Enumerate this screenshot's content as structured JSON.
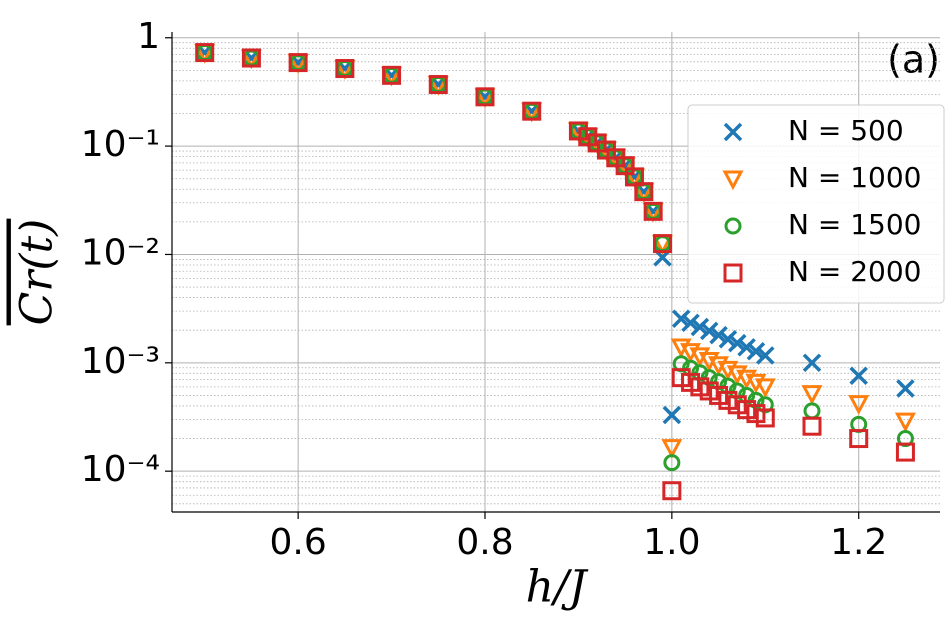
{
  "chart_data": {
    "type": "scatter",
    "xlabel": "h/J",
    "ylabel": "Cr(t)",
    "annotation": "(a)",
    "log_y": true,
    "grid": true,
    "legend": "upper right",
    "xlim": [
      0.465,
      1.287
    ],
    "ylim": [
      4.2e-05,
      1.13
    ],
    "xticks": [
      0.6,
      0.8,
      {
        "value": 1.0,
        "label": "1.0"
      },
      1.2
    ],
    "yticks": [
      {
        "value": 0.0001,
        "label": "10⁻⁴"
      },
      {
        "value": 0.001,
        "label": "10⁻³"
      },
      {
        "value": 0.01,
        "label": "10⁻²"
      },
      {
        "value": 0.1,
        "label": "10⁻¹"
      },
      1
    ],
    "x": [
      0.5,
      0.55,
      0.6,
      0.65,
      0.7,
      0.75,
      0.8,
      0.85,
      0.9,
      0.91,
      0.92,
      0.93,
      0.94,
      0.95,
      0.96,
      0.97,
      0.98,
      0.99,
      1.0,
      1.01,
      1.02,
      1.03,
      1.04,
      1.05,
      1.06,
      1.07,
      1.08,
      1.09,
      1.1,
      1.15,
      1.2,
      1.25
    ],
    "series": [
      {
        "name": "N = 500",
        "color": "#1f77b4",
        "marker": "x",
        "values": [
          0.73,
          0.65,
          0.59,
          0.52,
          0.45,
          0.37,
          0.285,
          0.21,
          0.138,
          0.122,
          0.107,
          0.092,
          0.078,
          0.066,
          0.052,
          0.038,
          0.025,
          0.0094,
          0.00033,
          0.00255,
          0.00234,
          0.00214,
          0.00197,
          0.0018,
          0.00165,
          0.00152,
          0.00139,
          0.00128,
          0.00117,
          0.001,
          0.00076,
          0.00058
        ]
      },
      {
        "name": "N = 1000",
        "color": "#ff7f0e",
        "marker": "triangle-down",
        "values": [
          0.73,
          0.65,
          0.59,
          0.52,
          0.45,
          0.37,
          0.285,
          0.21,
          0.138,
          0.122,
          0.107,
          0.092,
          0.078,
          0.066,
          0.052,
          0.038,
          0.025,
          0.0126,
          0.000165,
          0.0014,
          0.00127,
          0.00116,
          0.00105,
          0.00096,
          0.00087,
          0.00079,
          0.00072,
          0.00066,
          0.0006,
          0.00052,
          0.00042,
          0.00029
        ]
      },
      {
        "name": "N = 1500",
        "color": "#2ca02c",
        "marker": "circle",
        "values": [
          0.73,
          0.65,
          0.59,
          0.52,
          0.45,
          0.37,
          0.285,
          0.21,
          0.138,
          0.122,
          0.107,
          0.092,
          0.078,
          0.066,
          0.052,
          0.038,
          0.025,
          0.0126,
          0.00012,
          0.00098,
          0.00089,
          0.00081,
          0.00073,
          0.00067,
          0.00061,
          0.00055,
          0.0005,
          0.00045,
          0.00041,
          0.00036,
          0.00027,
          0.0002
        ]
      },
      {
        "name": "N = 2000",
        "color": "#d62728",
        "marker": "square",
        "values": [
          0.73,
          0.65,
          0.59,
          0.52,
          0.45,
          0.37,
          0.285,
          0.21,
          0.138,
          0.122,
          0.107,
          0.092,
          0.078,
          0.066,
          0.052,
          0.038,
          0.025,
          0.0126,
          6.6e-05,
          0.00073,
          0.00066,
          0.0006,
          0.00055,
          0.0005,
          0.00045,
          0.00041,
          0.00037,
          0.00034,
          0.00031,
          0.00026,
          0.0002,
          0.00015
        ]
      }
    ]
  }
}
